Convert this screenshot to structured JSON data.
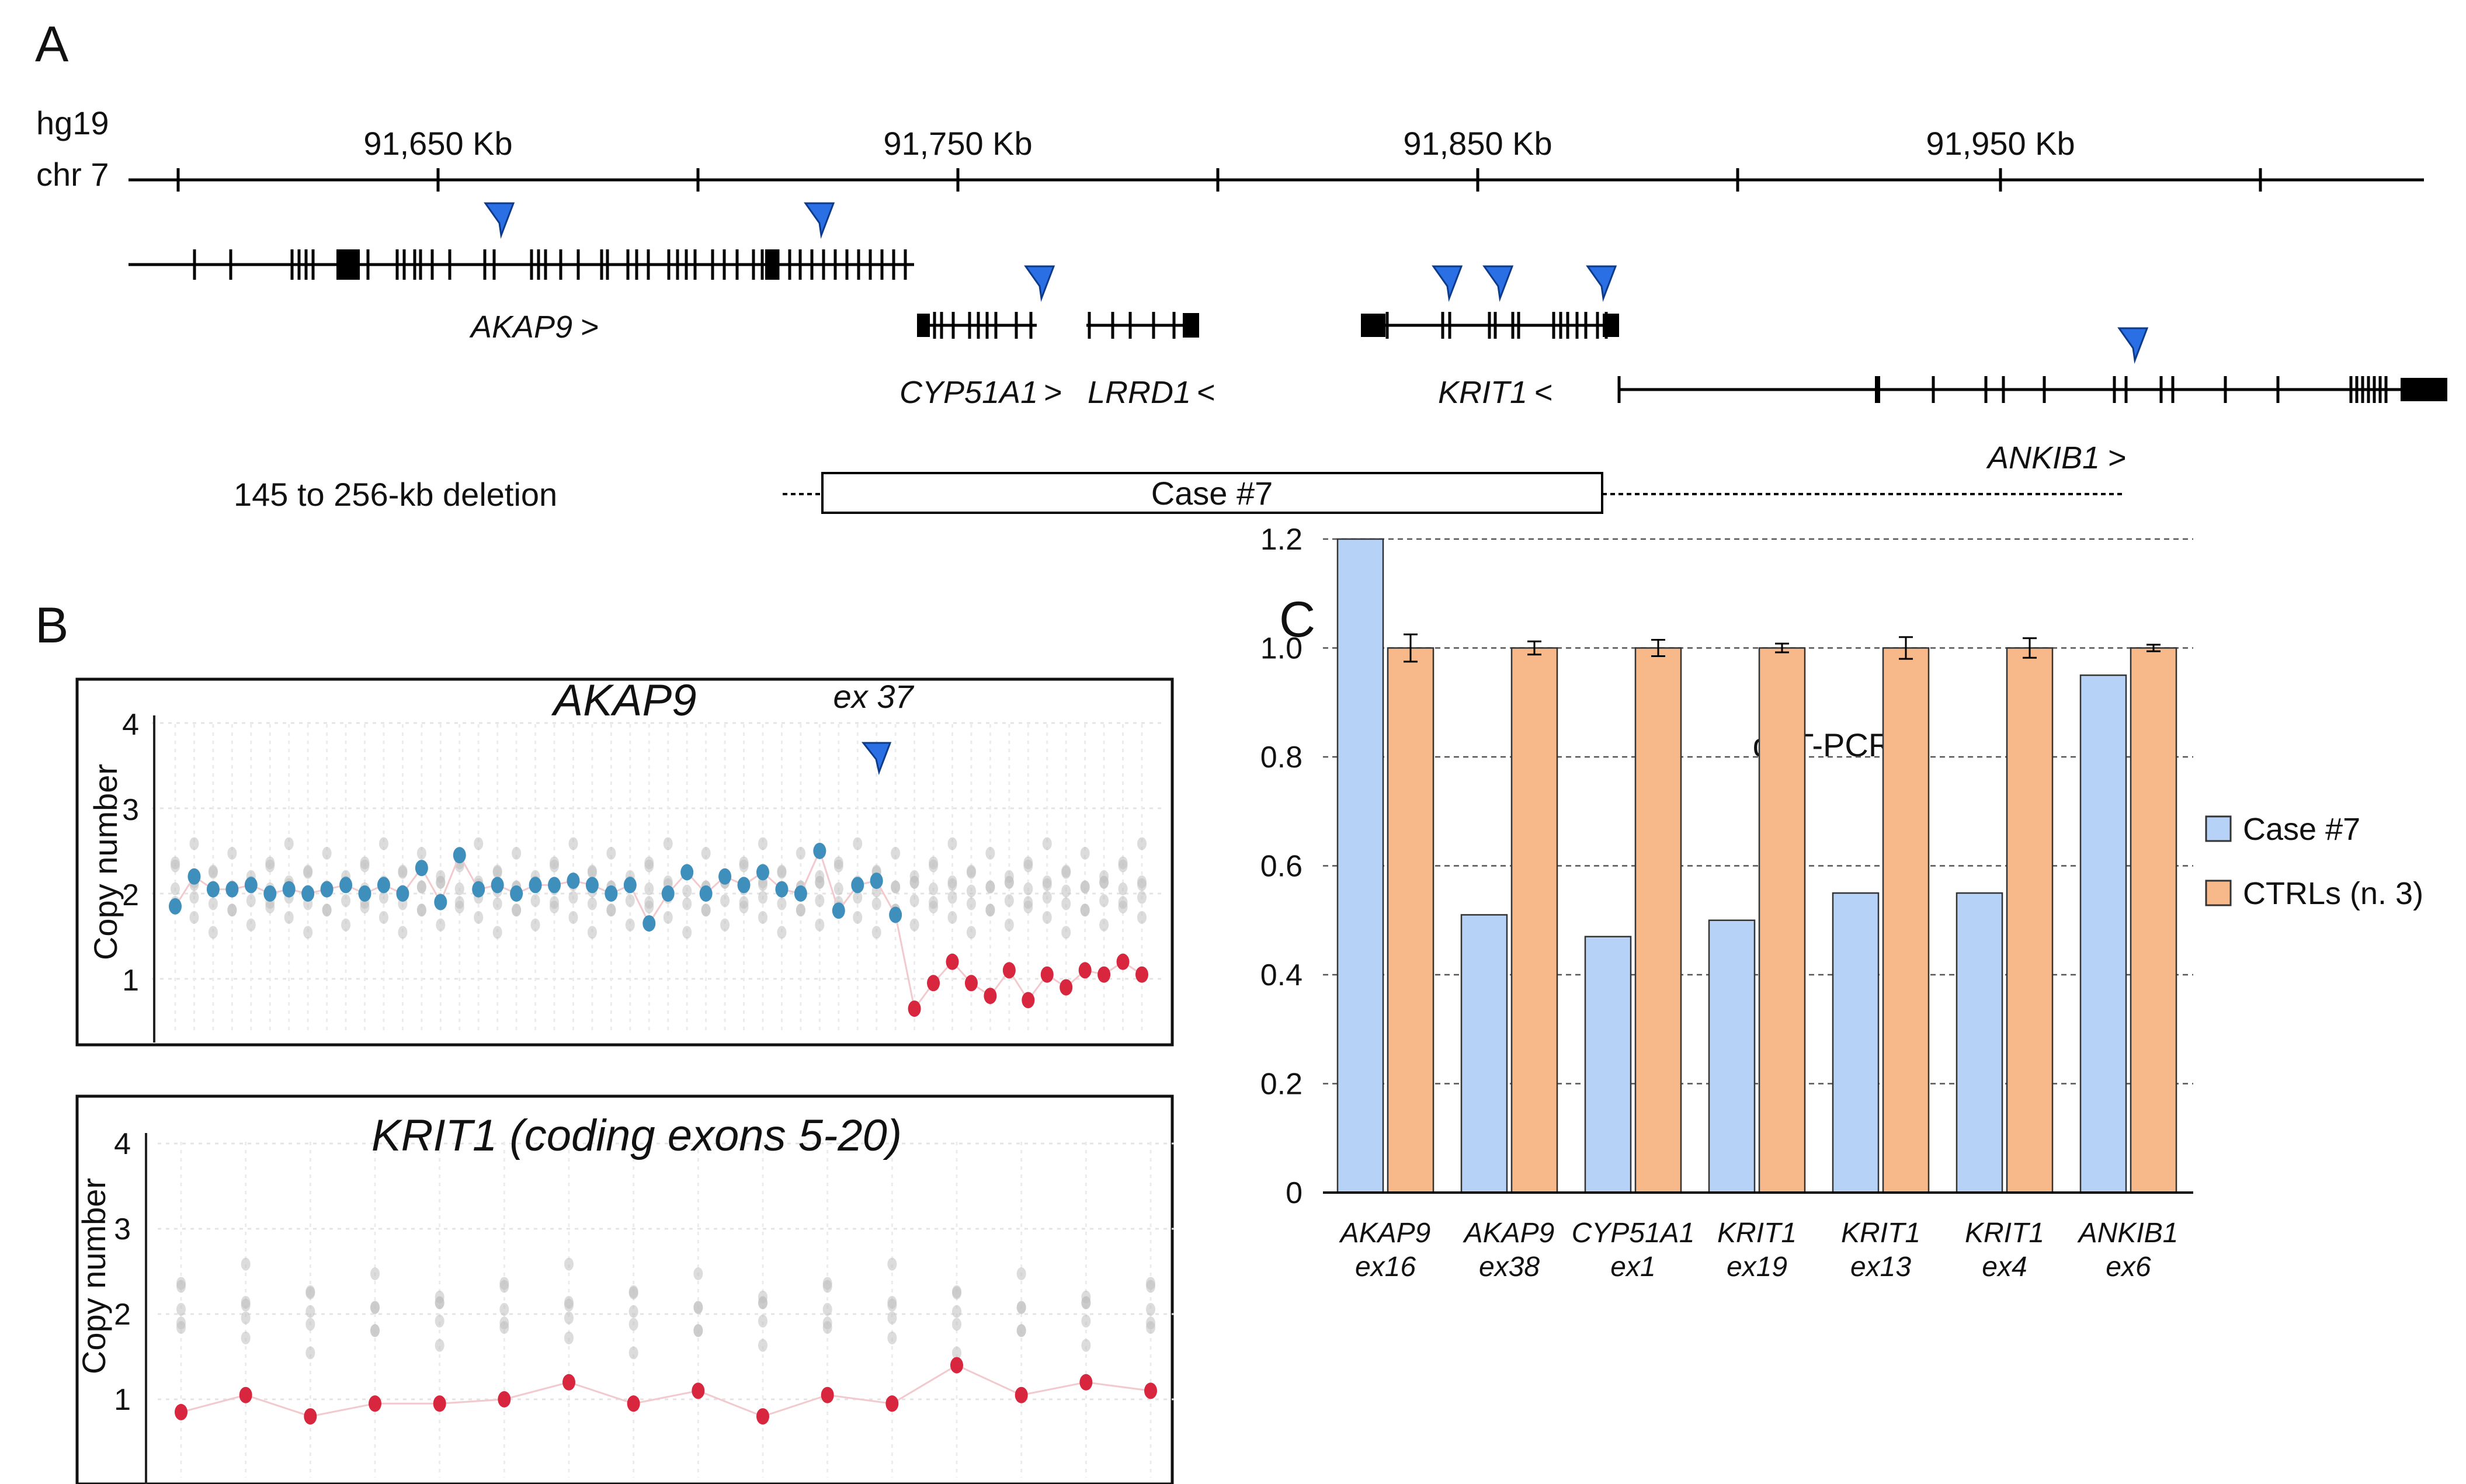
{
  "colors": {
    "arrow": "#2a6fe3",
    "blue_dot": "#3f8fbd",
    "red_dot": "#d7263d",
    "case_bar": "#b6d2f7",
    "ctrl_bar": "#f8b98a"
  },
  "panel_a": {
    "letter": "A",
    "assembly": "hg19",
    "chromosome": "chr 7",
    "ticks": [
      "91,650 Kb",
      "91,750 Kb",
      "91,850 Kb",
      "91,950 Kb"
    ],
    "genes": [
      {
        "name": "AKAP9",
        "dir": ">"
      },
      {
        "name": "CYP51A1",
        "dir": ">"
      },
      {
        "name": "LRRD1",
        "dir": "<"
      },
      {
        "name": "KRIT1",
        "dir": "<"
      },
      {
        "name": "ANKIB1",
        "dir": ">"
      }
    ],
    "deletion_label": "145 to 256-kb deletion",
    "case_label": "Case #7"
  },
  "panel_b": {
    "letter": "B",
    "top_title": "AKAP9",
    "exon_label": "ex 37",
    "bottom_title": "KRIT1 (coding exons 5-20)",
    "ylabel": "Copy number",
    "yticks": [
      "1",
      "2",
      "3",
      "4"
    ],
    "akap9_copy_number": [
      1.85,
      2.2,
      2.05,
      2.05,
      2.1,
      2.0,
      2.05,
      2.0,
      2.05,
      2.1,
      2.0,
      2.1,
      2.0,
      2.3,
      1.9,
      2.45,
      2.05,
      2.1,
      2.0,
      2.1,
      2.1,
      2.15,
      2.1,
      2.0,
      2.1,
      1.65,
      2.0,
      2.25,
      2.0,
      2.2,
      2.1,
      2.25,
      2.05,
      2.0,
      2.5,
      1.8,
      2.1,
      2.15,
      1.75,
      0.65,
      0.95,
      1.2,
      0.95,
      0.8,
      1.1,
      0.75,
      1.05,
      0.9,
      1.1,
      1.05,
      1.2,
      1.05
    ],
    "krit1_copy_number": [
      0.85,
      1.05,
      0.8,
      0.95,
      0.95,
      1.0,
      1.2,
      0.95,
      1.1,
      0.8,
      1.05,
      0.95,
      1.4,
      1.05,
      1.2,
      1.1
    ]
  },
  "panel_c": {
    "letter": "C",
    "chart_data": {
      "type": "bar",
      "title": "qRT-PCR",
      "categories": [
        {
          "gene": "AKAP9",
          "exon": "ex16"
        },
        {
          "gene": "AKAP9",
          "exon": "ex38"
        },
        {
          "gene": "CYP51A1",
          "exon": "ex1"
        },
        {
          "gene": "KRIT1",
          "exon": "ex19"
        },
        {
          "gene": "KRIT1",
          "exon": "ex13"
        },
        {
          "gene": "KRIT1",
          "exon": "ex4"
        },
        {
          "gene": "ANKIB1",
          "exon": "ex6"
        }
      ],
      "series": [
        {
          "name": "Case #7",
          "values": [
            1.2,
            0.51,
            0.47,
            0.5,
            0.55,
            0.55,
            0.95
          ]
        },
        {
          "name": "CTRLs (n. 3)",
          "values": [
            1.0,
            1.0,
            1.0,
            1.0,
            1.0,
            1.0,
            1.0
          ],
          "errors": [
            0.025,
            0.012,
            0.015,
            0.008,
            0.02,
            0.018,
            0.006
          ]
        }
      ],
      "yticks": [
        "0",
        "0.2",
        "0.4",
        "0.6",
        "0.8",
        "1.0",
        "1.2"
      ],
      "ylim": [
        0,
        1.2
      ],
      "grid": true,
      "legend_position": "right"
    }
  }
}
